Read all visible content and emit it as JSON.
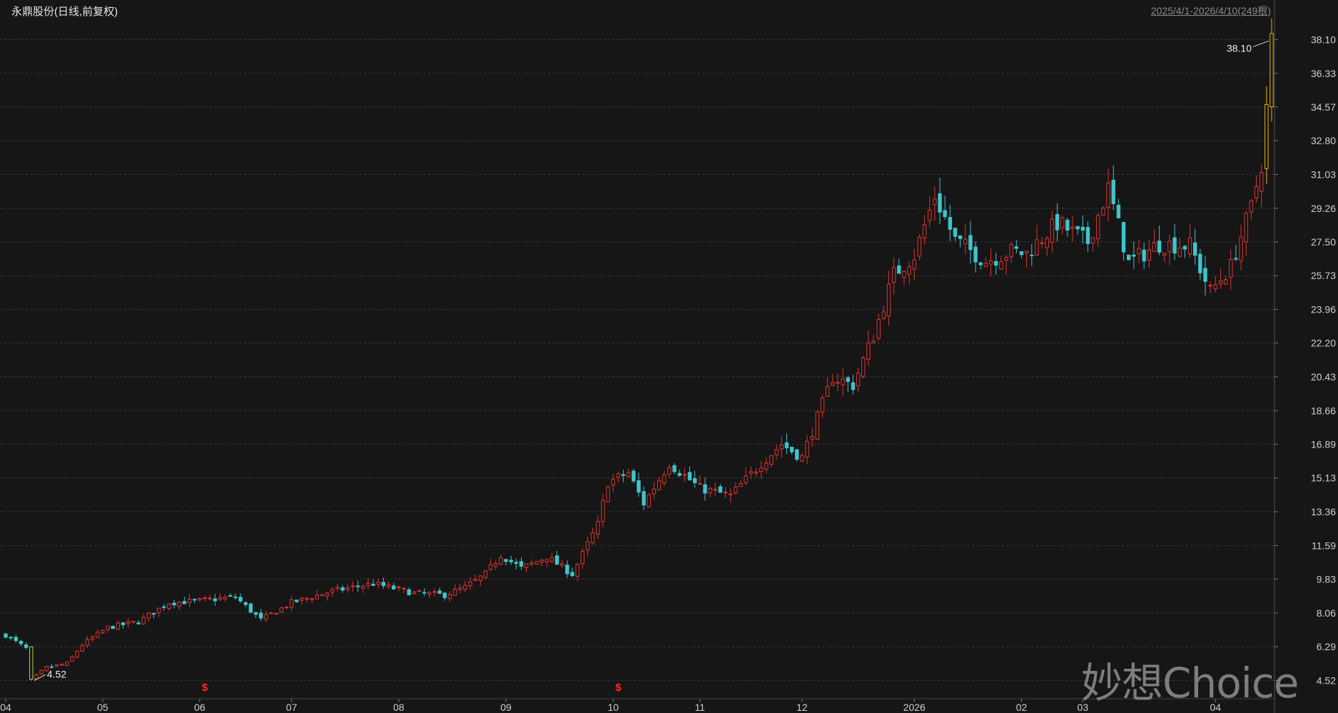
{
  "header": {
    "title": "永鼎股份(日线,前复权)",
    "range": "2025/4/1-2026/4/10(249根)"
  },
  "watermark": "妙想Choice",
  "colors": {
    "background": "#161616",
    "grid": "#3a3a3a",
    "up": "#e0332f",
    "down": "#3ec5cc",
    "limit_up": "#e8b400",
    "limit_down": "#a8d84a",
    "axis_text": "#cfcfcf",
    "marker": "#ff2a2a"
  },
  "chart_data": {
    "type": "candlestick",
    "title": "永鼎股份(日线,前复权)",
    "ylim": [
      3.9,
      39.2
    ],
    "y_ticks": [
      "38.10",
      "36.33",
      "34.57",
      "32.80",
      "31.03",
      "29.26",
      "27.50",
      "25.73",
      "23.96",
      "22.20",
      "20.43",
      "18.66",
      "16.89",
      "15.13",
      "13.36",
      "11.59",
      "9.83",
      "8.06",
      "6.29",
      "4.52"
    ],
    "x_ticks": [
      {
        "label": "04",
        "index": 0
      },
      {
        "label": "05",
        "index": 19
      },
      {
        "label": "06",
        "index": 38
      },
      {
        "label": "07",
        "index": 56
      },
      {
        "label": "08",
        "index": 77
      },
      {
        "label": "09",
        "index": 98
      },
      {
        "label": "10",
        "index": 119
      },
      {
        "label": "11",
        "index": 136
      },
      {
        "label": "12",
        "index": 156
      },
      {
        "label": "2026",
        "index": 178
      },
      {
        "label": "02",
        "index": 199
      },
      {
        "label": "03",
        "index": 211
      },
      {
        "label": "04",
        "index": 237
      }
    ],
    "annotations": [
      {
        "text": "38.10",
        "index": 248,
        "value": 38.1,
        "kind": "high"
      },
      {
        "text": "4.52",
        "index": 5,
        "value": 4.52,
        "kind": "low"
      }
    ],
    "markers": [
      {
        "text": "$",
        "index": 39
      },
      {
        "text": "$",
        "index": 120
      }
    ],
    "anchors": [
      [
        0,
        6.9
      ],
      [
        4,
        6.2
      ],
      [
        5,
        4.52
      ],
      [
        8,
        5.2
      ],
      [
        12,
        5.4
      ],
      [
        15,
        6.4
      ],
      [
        20,
        7.3
      ],
      [
        26,
        7.6
      ],
      [
        32,
        8.6
      ],
      [
        38,
        8.7
      ],
      [
        45,
        8.9
      ],
      [
        50,
        7.7
      ],
      [
        56,
        8.6
      ],
      [
        64,
        9.2
      ],
      [
        72,
        9.6
      ],
      [
        80,
        9.1
      ],
      [
        86,
        9.0
      ],
      [
        90,
        9.4
      ],
      [
        94,
        10.1
      ],
      [
        97,
        11.1
      ],
      [
        101,
        10.4
      ],
      [
        106,
        11.0
      ],
      [
        111,
        10.1
      ],
      [
        116,
        12.7
      ],
      [
        118,
        14.9
      ],
      [
        122,
        15.4
      ],
      [
        125,
        13.8
      ],
      [
        130,
        15.9
      ],
      [
        136,
        14.6
      ],
      [
        142,
        14.2
      ],
      [
        148,
        15.9
      ],
      [
        152,
        16.9
      ],
      [
        156,
        16.2
      ],
      [
        159,
        18.3
      ],
      [
        162,
        20.4
      ],
      [
        166,
        20.0
      ],
      [
        170,
        22.6
      ],
      [
        174,
        25.8
      ],
      [
        178,
        26.8
      ],
      [
        182,
        29.9
      ],
      [
        186,
        27.6
      ],
      [
        192,
        26.5
      ],
      [
        197,
        27.0
      ],
      [
        200,
        26.9
      ],
      [
        206,
        28.5
      ],
      [
        212,
        27.5
      ],
      [
        216,
        30.3
      ],
      [
        220,
        26.4
      ],
      [
        226,
        27.4
      ],
      [
        232,
        27.3
      ],
      [
        236,
        24.9
      ],
      [
        240,
        26.2
      ],
      [
        242,
        27.8
      ],
      [
        244,
        29.3
      ],
      [
        246,
        31.6
      ],
      [
        247,
        34.5
      ],
      [
        248,
        38.1
      ]
    ]
  }
}
